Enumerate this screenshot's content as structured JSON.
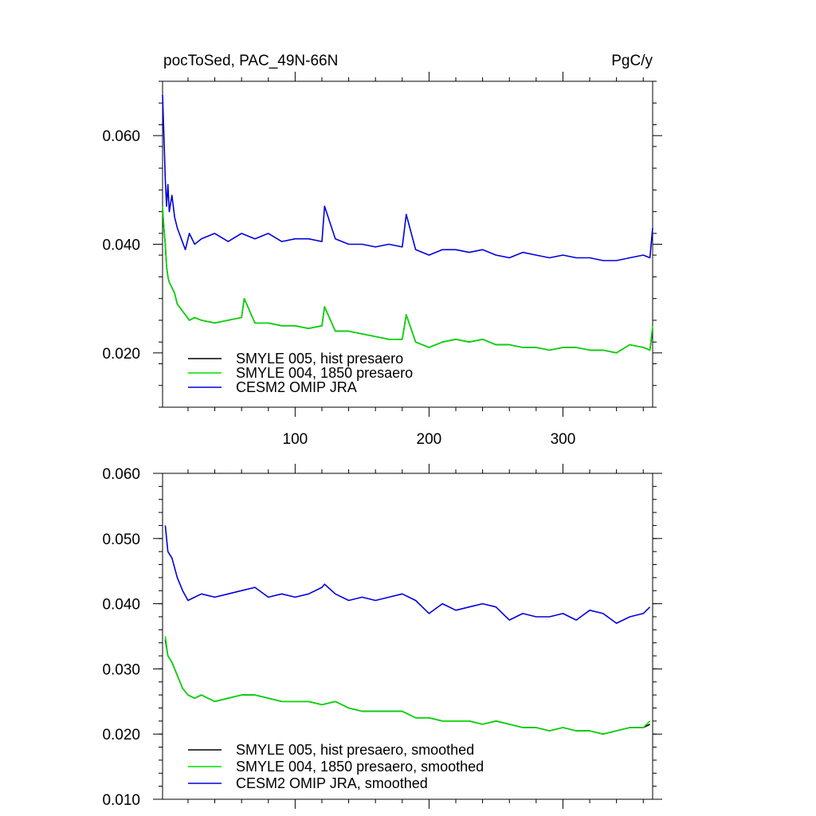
{
  "chart_data": [
    {
      "type": "line",
      "title_left": "pocToSed, PAC_49N-66N",
      "title_right": "PgC/y",
      "xlim": [
        1,
        367
      ],
      "ylim": [
        0.01,
        0.07
      ],
      "xticks": [
        100,
        200,
        300
      ],
      "yticks": [
        0.02,
        0.04,
        0.06
      ],
      "ytick_labels": [
        "0.020",
        "0.040",
        "0.060"
      ],
      "xtick_labels": [
        "100",
        "200",
        "300"
      ],
      "grid": false,
      "legend_position": "lower-left",
      "series": [
        {
          "name": "SMYLE 005, hist presaero",
          "color": "#000000",
          "x": [
            1,
            2,
            3,
            4,
            5,
            6,
            8,
            10,
            12,
            15,
            18,
            21,
            25,
            30,
            40,
            50,
            60,
            62,
            70,
            80,
            90,
            100,
            110,
            120,
            122,
            130,
            140,
            150,
            160,
            170,
            180,
            183,
            190,
            200,
            210,
            220,
            230,
            240,
            250,
            260,
            270,
            280,
            290,
            300,
            310,
            320,
            330,
            340,
            350,
            360,
            365,
            367
          ],
          "values": [
            0.0465,
            0.043,
            0.04,
            0.036,
            0.034,
            0.033,
            0.032,
            0.031,
            0.029,
            0.028,
            0.027,
            0.026,
            0.0265,
            0.026,
            0.0255,
            0.026,
            0.0265,
            0.03,
            0.0255,
            0.0255,
            0.025,
            0.025,
            0.0245,
            0.025,
            0.0285,
            0.024,
            0.024,
            0.0235,
            0.023,
            0.0225,
            0.0225,
            0.027,
            0.022,
            0.021,
            0.022,
            0.0225,
            0.022,
            0.0225,
            0.0215,
            0.0215,
            0.021,
            0.021,
            0.0205,
            0.021,
            0.021,
            0.0205,
            0.0205,
            0.02,
            0.0215,
            0.021,
            0.0205,
            0.0245
          ]
        },
        {
          "name": "SMYLE 004, 1850 presaero",
          "color": "#00dd00",
          "x": [
            1,
            2,
            3,
            4,
            5,
            6,
            8,
            10,
            12,
            15,
            18,
            21,
            25,
            30,
            40,
            50,
            60,
            62,
            70,
            80,
            90,
            100,
            110,
            120,
            122,
            130,
            140,
            150,
            160,
            170,
            180,
            183,
            190,
            200,
            210,
            220,
            230,
            240,
            250,
            260,
            270,
            280,
            290,
            300,
            310,
            320,
            330,
            340,
            350,
            360,
            365,
            367
          ],
          "values": [
            0.047,
            0.043,
            0.04,
            0.036,
            0.034,
            0.033,
            0.032,
            0.031,
            0.029,
            0.028,
            0.027,
            0.026,
            0.0265,
            0.026,
            0.0255,
            0.026,
            0.0265,
            0.03,
            0.0255,
            0.0255,
            0.025,
            0.025,
            0.0245,
            0.025,
            0.0285,
            0.024,
            0.024,
            0.0235,
            0.023,
            0.0225,
            0.0225,
            0.027,
            0.022,
            0.021,
            0.022,
            0.0225,
            0.022,
            0.0225,
            0.0215,
            0.0215,
            0.021,
            0.021,
            0.0205,
            0.021,
            0.021,
            0.0205,
            0.0205,
            0.02,
            0.0215,
            0.021,
            0.0205,
            0.025
          ]
        },
        {
          "name": "CESM2 OMIP JRA",
          "color": "#0000dd",
          "x": [
            1,
            2,
            3,
            4,
            5,
            6,
            8,
            10,
            12,
            15,
            18,
            21,
            25,
            30,
            40,
            50,
            60,
            70,
            80,
            90,
            100,
            110,
            120,
            122,
            130,
            140,
            150,
            160,
            170,
            180,
            183,
            190,
            200,
            210,
            220,
            230,
            240,
            250,
            260,
            270,
            280,
            290,
            300,
            310,
            320,
            330,
            340,
            350,
            360,
            365,
            367
          ],
          "values": [
            0.0675,
            0.06,
            0.052,
            0.047,
            0.051,
            0.046,
            0.049,
            0.045,
            0.043,
            0.041,
            0.039,
            0.042,
            0.04,
            0.041,
            0.042,
            0.0405,
            0.042,
            0.041,
            0.042,
            0.0405,
            0.041,
            0.041,
            0.0405,
            0.047,
            0.041,
            0.04,
            0.04,
            0.0395,
            0.04,
            0.0395,
            0.0455,
            0.039,
            0.038,
            0.039,
            0.039,
            0.0385,
            0.039,
            0.038,
            0.0375,
            0.0385,
            0.038,
            0.0375,
            0.038,
            0.0375,
            0.0375,
            0.037,
            0.037,
            0.0375,
            0.038,
            0.0375,
            0.043
          ]
        }
      ],
      "legend": [
        "SMYLE 005, hist presaero",
        "SMYLE 004, 1850 presaero",
        "CESM2 OMIP JRA"
      ]
    },
    {
      "type": "line",
      "xlim": [
        1,
        367
      ],
      "ylim": [
        0.01,
        0.06
      ],
      "xticks": [
        100,
        200,
        300
      ],
      "yticks": [
        0.01,
        0.02,
        0.03,
        0.04,
        0.05,
        0.06
      ],
      "ytick_labels": [
        "0.010",
        "0.020",
        "0.030",
        "0.040",
        "0.050",
        "0.060"
      ],
      "grid": false,
      "legend_position": "lower-left",
      "series": [
        {
          "name": "SMYLE 005, hist presaero, smoothed",
          "color": "#000000",
          "x": [
            3,
            5,
            8,
            12,
            16,
            20,
            25,
            30,
            40,
            50,
            60,
            70,
            80,
            90,
            100,
            110,
            120,
            130,
            140,
            150,
            160,
            170,
            180,
            190,
            200,
            210,
            220,
            230,
            240,
            250,
            260,
            270,
            280,
            290,
            300,
            310,
            320,
            330,
            340,
            350,
            360,
            365
          ],
          "values": [
            0.0345,
            0.032,
            0.031,
            0.029,
            0.027,
            0.026,
            0.0255,
            0.026,
            0.025,
            0.0255,
            0.026,
            0.026,
            0.0255,
            0.025,
            0.025,
            0.025,
            0.0245,
            0.025,
            0.024,
            0.0235,
            0.0235,
            0.0235,
            0.0235,
            0.0225,
            0.0225,
            0.022,
            0.022,
            0.022,
            0.0215,
            0.022,
            0.0215,
            0.021,
            0.021,
            0.0205,
            0.021,
            0.0205,
            0.0205,
            0.02,
            0.0205,
            0.021,
            0.021,
            0.0215
          ]
        },
        {
          "name": "SMYLE 004, 1850 presaero, smoothed",
          "color": "#00dd00",
          "x": [
            3,
            5,
            8,
            12,
            16,
            20,
            25,
            30,
            40,
            50,
            60,
            70,
            80,
            90,
            100,
            110,
            120,
            130,
            140,
            150,
            160,
            170,
            180,
            190,
            200,
            210,
            220,
            230,
            240,
            250,
            260,
            270,
            280,
            290,
            300,
            310,
            320,
            330,
            340,
            350,
            360,
            365
          ],
          "values": [
            0.035,
            0.032,
            0.031,
            0.029,
            0.027,
            0.026,
            0.0255,
            0.026,
            0.025,
            0.0255,
            0.026,
            0.026,
            0.0255,
            0.025,
            0.025,
            0.025,
            0.0245,
            0.025,
            0.024,
            0.0235,
            0.0235,
            0.0235,
            0.0235,
            0.0225,
            0.0225,
            0.022,
            0.022,
            0.022,
            0.0215,
            0.022,
            0.0215,
            0.021,
            0.021,
            0.0205,
            0.021,
            0.0205,
            0.0205,
            0.02,
            0.0205,
            0.021,
            0.021,
            0.022
          ]
        },
        {
          "name": "CESM2 OMIP JRA, smoothed",
          "color": "#0000dd",
          "x": [
            3,
            5,
            8,
            12,
            16,
            20,
            25,
            30,
            40,
            50,
            60,
            70,
            80,
            90,
            100,
            110,
            120,
            122,
            130,
            140,
            150,
            160,
            170,
            180,
            190,
            200,
            210,
            220,
            230,
            240,
            250,
            260,
            270,
            280,
            290,
            300,
            310,
            320,
            330,
            340,
            350,
            360,
            365
          ],
          "values": [
            0.052,
            0.048,
            0.047,
            0.044,
            0.042,
            0.0405,
            0.041,
            0.0415,
            0.041,
            0.0415,
            0.042,
            0.0425,
            0.041,
            0.0415,
            0.041,
            0.0415,
            0.0425,
            0.043,
            0.0415,
            0.0405,
            0.041,
            0.0405,
            0.041,
            0.0415,
            0.0405,
            0.0385,
            0.04,
            0.039,
            0.0395,
            0.04,
            0.0395,
            0.0375,
            0.0385,
            0.038,
            0.038,
            0.0385,
            0.0375,
            0.039,
            0.0385,
            0.037,
            0.038,
            0.0385,
            0.0395
          ]
        }
      ],
      "legend": [
        "SMYLE 005, hist presaero, smoothed",
        "SMYLE 004, 1850 presaero, smoothed",
        "CESM2 OMIP JRA, smoothed"
      ]
    }
  ]
}
